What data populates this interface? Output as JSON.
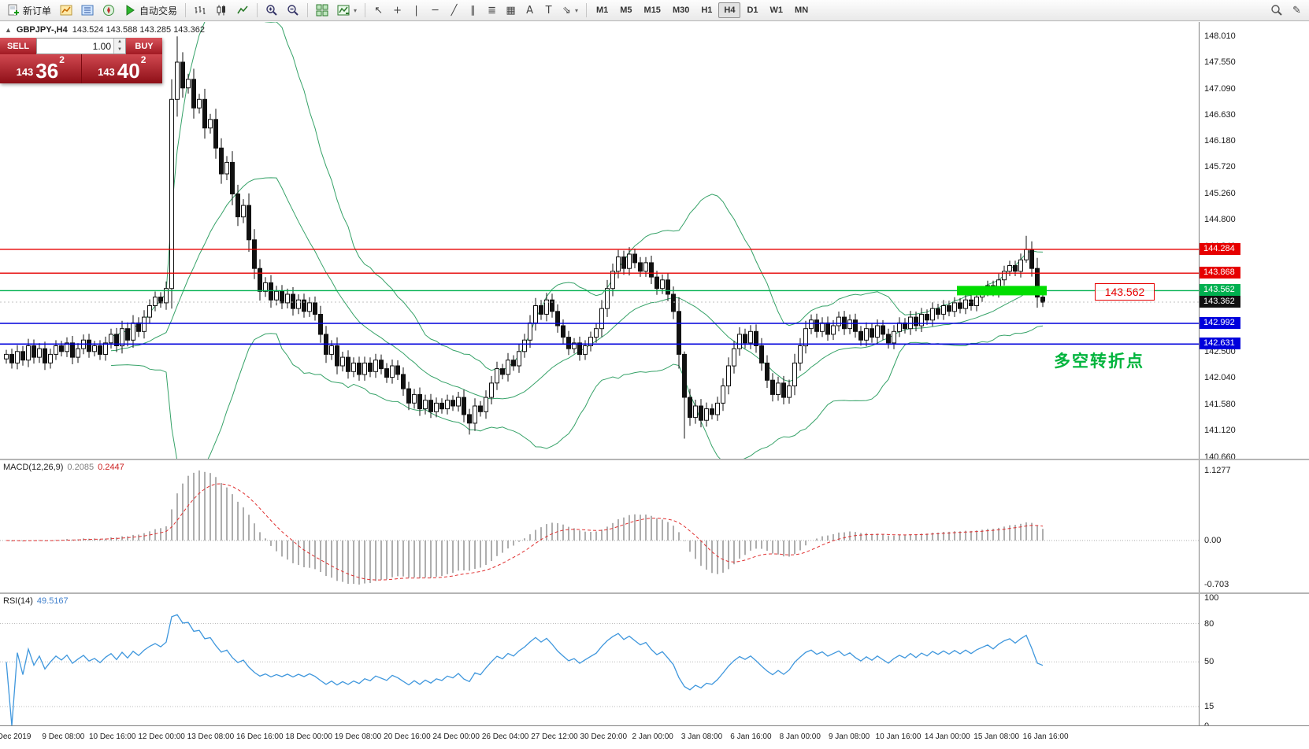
{
  "toolbar": {
    "new_order": "新订单",
    "autotrading": "自动交易",
    "timeframes": [
      "M1",
      "M5",
      "M15",
      "M30",
      "H1",
      "H4",
      "D1",
      "W1",
      "MN"
    ],
    "active_timeframe": "H4"
  },
  "symbol_info": {
    "expander": "▲",
    "title": "GBPJPY-,H4",
    "ohlc": "143.524 143.588 143.285 143.362",
    "open": "143.524",
    "high": "143.588",
    "low": "143.285",
    "close": "143.362"
  },
  "trade_panel": {
    "sell_label": "SELL",
    "buy_label": "BUY",
    "volume": "1.00",
    "sell_base": "143",
    "sell_pips": "36",
    "sell_sup": "2",
    "buy_base": "143",
    "buy_pips": "40",
    "buy_sup": "2"
  },
  "annotations": {
    "price_label": "143.562",
    "note": "多空转折点",
    "note_color": "#00b43c",
    "price_label_color": "#e60000"
  },
  "price_axis": {
    "ticks": [
      "148.010",
      "147.550",
      "147.090",
      "146.630",
      "146.180",
      "145.720",
      "145.260",
      "144.800",
      "144.340",
      "143.880",
      "143.420",
      "142.960",
      "142.500",
      "142.040",
      "141.580",
      "141.120",
      "140.660"
    ],
    "markers": [
      {
        "label": "144.284",
        "price": 144.284,
        "bg": "#e60000"
      },
      {
        "label": "143.868",
        "price": 143.868,
        "bg": "#e60000"
      },
      {
        "label": "143.562",
        "price": 143.562,
        "bg": "#00b050"
      },
      {
        "label": "143.362",
        "price": 143.362,
        "bg": "#111111"
      },
      {
        "label": "142.992",
        "price": 142.992,
        "bg": "#0000dc"
      },
      {
        "label": "142.631",
        "price": 142.631,
        "bg": "#0000dc"
      }
    ]
  },
  "time_axis": {
    "labels": [
      "Dec 2019",
      "9 Dec 08:00",
      "10 Dec 16:00",
      "12 Dec 00:00",
      "13 Dec 08:00",
      "16 Dec 16:00",
      "18 Dec 00:00",
      "19 Dec 08:00",
      "20 Dec 16:00",
      "24 Dec 00:00",
      "26 Dec 04:00",
      "27 Dec 12:00",
      "30 Dec 20:00",
      "2 Jan 00:00",
      "3 Jan 08:00",
      "6 Jan 16:00",
      "8 Jan 00:00",
      "9 Jan 08:00",
      "10 Jan 16:00",
      "14 Jan 00:00",
      "15 Jan 08:00",
      "16 Jan 16:00"
    ]
  },
  "macd_panel": {
    "name": "MACD(12,26,9)",
    "value_main": "0.2085",
    "value_signal": "0.2447",
    "axis_labels": [
      "1.1277",
      "0.00",
      "-0.703"
    ],
    "axis_values": [
      1.1277,
      0,
      -0.703
    ],
    "histogram_color": "#9a9a9a",
    "signal_color": "#e03030"
  },
  "rsi_panel": {
    "name": "RSI(14)",
    "value": "49.5167",
    "axis_labels": [
      "100",
      "80",
      "50",
      "15",
      "0"
    ],
    "axis_values": [
      100,
      80,
      50,
      15,
      0
    ],
    "level_lines": [
      80,
      50,
      15
    ],
    "line_color": "#3f97dd"
  },
  "chart_data": {
    "type": "candlestick",
    "symbol": "GBPJPY-",
    "timeframe": "H4",
    "title": "GBPJPY-,H4",
    "y_range": [
      140.63,
      148.25
    ],
    "current_price": 143.362,
    "last_ohlc": {
      "open": 143.524,
      "high": 143.588,
      "low": 143.285,
      "close": 143.362
    },
    "closes": [
      142.45,
      142.3,
      142.5,
      142.35,
      142.6,
      142.4,
      142.55,
      142.3,
      142.45,
      142.6,
      142.5,
      142.65,
      142.4,
      142.55,
      142.7,
      142.5,
      142.6,
      142.45,
      142.65,
      142.8,
      142.6,
      142.9,
      142.7,
      143.0,
      142.85,
      143.1,
      143.3,
      143.45,
      143.35,
      143.6,
      146.9,
      147.55,
      147.1,
      147.25,
      146.75,
      146.9,
      146.4,
      146.55,
      146.05,
      145.6,
      145.8,
      145.25,
      144.85,
      145.05,
      144.45,
      143.95,
      143.55,
      143.7,
      143.4,
      143.55,
      143.35,
      143.5,
      143.25,
      143.4,
      143.2,
      143.35,
      143.15,
      142.8,
      142.45,
      142.6,
      142.25,
      142.4,
      142.15,
      142.3,
      142.1,
      142.3,
      142.15,
      142.35,
      142.2,
      142.05,
      142.25,
      142.1,
      141.85,
      141.6,
      141.75,
      141.5,
      141.65,
      141.45,
      141.6,
      141.5,
      141.65,
      141.55,
      141.7,
      141.4,
      141.25,
      141.55,
      141.45,
      141.7,
      141.95,
      142.2,
      142.1,
      142.35,
      142.25,
      142.5,
      142.7,
      143.0,
      143.3,
      143.15,
      143.4,
      143.2,
      142.95,
      142.75,
      142.55,
      142.65,
      142.45,
      142.6,
      142.75,
      142.9,
      143.25,
      143.6,
      143.9,
      144.15,
      143.95,
      144.2,
      144.05,
      143.9,
      144.05,
      143.8,
      143.6,
      143.75,
      143.5,
      143.2,
      142.45,
      141.7,
      141.35,
      141.55,
      141.3,
      141.5,
      141.4,
      141.6,
      141.9,
      142.25,
      142.55,
      142.8,
      142.65,
      142.85,
      142.6,
      142.3,
      142.0,
      141.75,
      141.95,
      141.7,
      141.9,
      142.3,
      142.6,
      142.9,
      143.05,
      142.85,
      143.0,
      142.8,
      142.95,
      143.1,
      142.9,
      143.05,
      142.85,
      142.7,
      142.9,
      142.75,
      142.95,
      142.8,
      142.65,
      142.85,
      143.0,
      142.9,
      143.1,
      142.95,
      143.15,
      143.05,
      143.25,
      143.15,
      143.3,
      143.2,
      143.35,
      143.25,
      143.4,
      143.3,
      143.45,
      143.55,
      143.65,
      143.55,
      143.75,
      143.9,
      144.0,
      143.9,
      144.1,
      144.28,
      143.95,
      143.45,
      143.36
    ],
    "extremes": {
      "31": [
        148.0,
        146.6
      ],
      "84": [
        141.5,
        141.05
      ],
      "123": [
        142.5,
        140.98
      ],
      "185": [
        144.52,
        144.05
      ]
    },
    "overlays": {
      "bollinger": {
        "period": 20,
        "deviation": 2,
        "color": "#36a268"
      },
      "hlines": [
        {
          "price": 144.284,
          "color": "#e60000",
          "width": 1.4
        },
        {
          "price": 143.868,
          "color": "#e60000",
          "width": 1.4
        },
        {
          "price": 143.562,
          "color": "#00b050",
          "width": 1.4
        },
        {
          "price": 142.992,
          "color": "#0000dc",
          "width": 1.6
        },
        {
          "price": 142.631,
          "color": "#0000dc",
          "width": 1.6
        }
      ],
      "highlight": {
        "price": 143.562,
        "from_index": 173,
        "to_index": 188,
        "color": "#00dd00"
      }
    }
  }
}
